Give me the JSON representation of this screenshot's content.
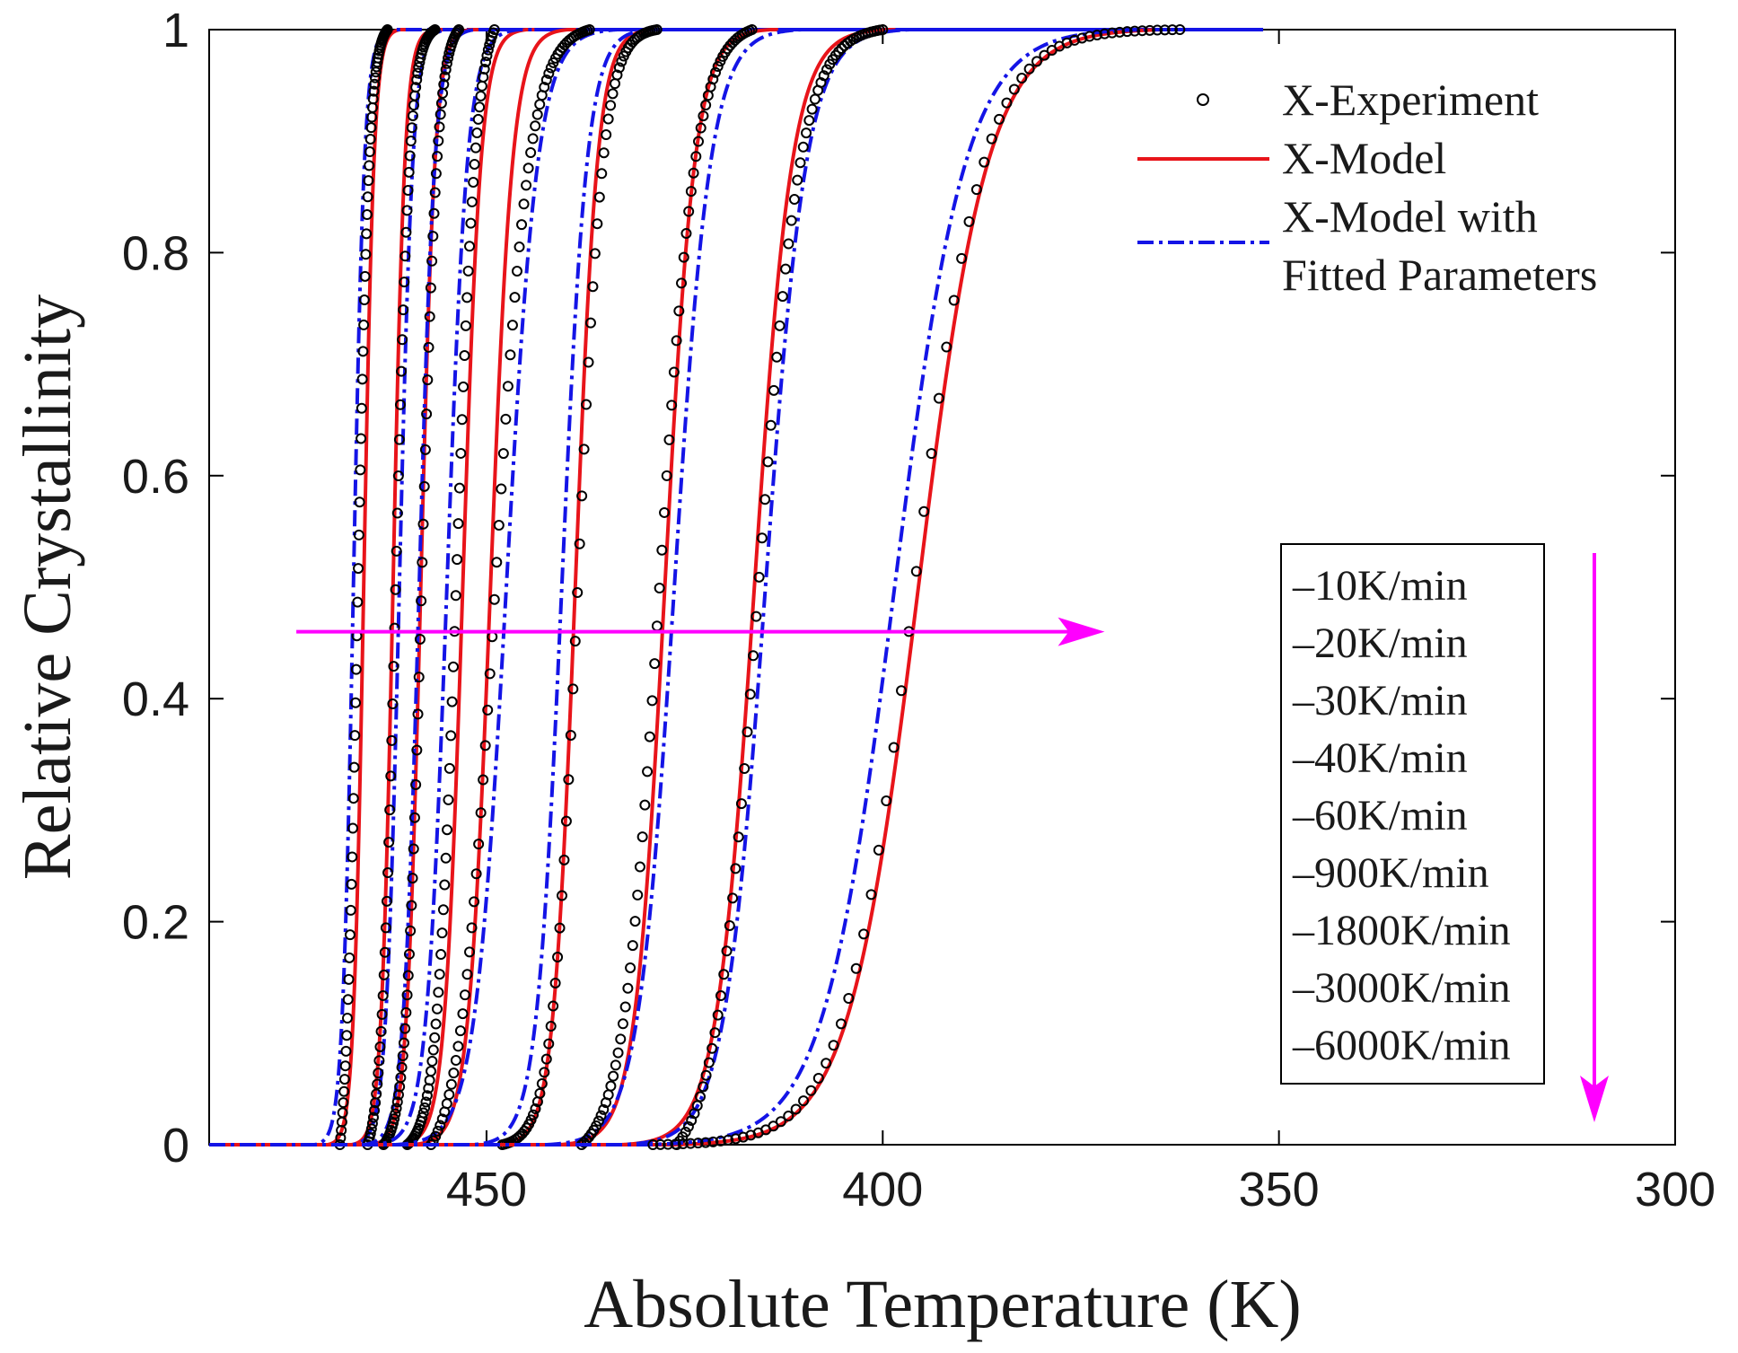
{
  "chart_data": {
    "type": "line",
    "xlabel": "Absolute Temperature (K)",
    "ylabel": "Relative Crystallinity",
    "xlim": [
      485,
      300
    ],
    "x_reversed": true,
    "ylim": [
      0,
      1
    ],
    "x_ticks": [
      450,
      400,
      350,
      300
    ],
    "x_tick_labels": [
      "450",
      "400",
      "350",
      "300"
    ],
    "y_ticks": [
      0,
      0.2,
      0.4,
      0.6,
      0.8,
      1
    ],
    "y_tick_labels": [
      "0",
      "0.2",
      "0.4",
      "0.6",
      "0.8",
      "1"
    ],
    "grid": false,
    "legend": {
      "position": "top-right",
      "entries": [
        {
          "label": "X-Experiment",
          "style": "circle-markers",
          "color": "#000000"
        },
        {
          "label": "X-Model",
          "style": "solid",
          "color": "#e8141a"
        },
        {
          "label": "X-Model with",
          "label2": "Fitted Parameters",
          "style": "dash-dot",
          "color": "#1414e6"
        }
      ]
    },
    "rate_legend": {
      "position": "right",
      "entries": [
        "–10K/min",
        "–20K/min",
        "–30K/min",
        "–40K/min",
        "–60K/min",
        "–900K/min",
        "–1800K/min",
        "–3000K/min",
        "–6000K/min"
      ]
    },
    "annotations": [
      {
        "type": "arrow",
        "direction": "toward lower temperature",
        "y": 0.46,
        "x_from": 474,
        "x_to": 372,
        "color": "#ff00ff"
      },
      {
        "type": "arrow",
        "direction": "down along rate list",
        "color": "#ff00ff"
      }
    ],
    "series_params": [
      {
        "rate": "–10K/min",
        "exp_mid": 466.3,
        "exp_width": 0.75,
        "exp_start": 468.5,
        "exp_end": 462.5,
        "model_mid": 465.5,
        "model_width": 0.65,
        "fit_mid": 466.8,
        "fit_width": 0.7
      },
      {
        "rate": "–20K/min",
        "exp_mid": 461.5,
        "exp_width": 0.9,
        "exp_start": 465.0,
        "exp_end": 456.5,
        "model_mid": 461.8,
        "model_width": 0.75,
        "fit_mid": 461.0,
        "fit_width": 0.85
      },
      {
        "rate": "–30K/min",
        "exp_mid": 458.2,
        "exp_width": 1.0,
        "exp_start": 463.0,
        "exp_end": 453.5,
        "model_mid": 458.3,
        "model_width": 0.9,
        "fit_mid": 458.5,
        "fit_width": 1.0
      },
      {
        "rate": "–40K/min",
        "exp_mid": 453.8,
        "exp_width": 1.25,
        "exp_start": 460.0,
        "exp_end": 449.0,
        "model_mid": 453.0,
        "model_width": 1.15,
        "fit_mid": 455.0,
        "fit_width": 1.3
      },
      {
        "rate": "–60K/min",
        "exp_mid": 449.0,
        "exp_width": 2.2,
        "exp_start": 457.0,
        "exp_end": 437.0,
        "model_mid": 449.5,
        "model_width": 1.4,
        "fit_mid": 447.5,
        "fit_width": 2.0
      },
      {
        "rate": "–900K/min",
        "exp_mid": 438.5,
        "exp_width": 1.6,
        "exp_start": 448.0,
        "exp_end": 428.5,
        "model_mid": 438.8,
        "model_width": 1.4,
        "fit_mid": 440.5,
        "fit_width": 1.6
      },
      {
        "rate": "–1800K/min",
        "exp_mid": 428.2,
        "exp_width": 2.3,
        "exp_start": 438.0,
        "exp_end": 416.5,
        "model_mid": 427.5,
        "model_width": 1.9,
        "fit_mid": 426.3,
        "fit_width": 2.3
      },
      {
        "rate": "–3000K/min",
        "exp_mid": 415.8,
        "exp_width": 2.7,
        "exp_start": 426.0,
        "exp_end": 400.0,
        "model_mid": 416.2,
        "model_width": 2.4,
        "fit_mid": 414.8,
        "fit_width": 2.6
      },
      {
        "rate": "–6000K/min",
        "exp_mid": 396.0,
        "exp_width": 4.4,
        "exp_start": 429.0,
        "exp_end": 362.5,
        "model_mid": 395.5,
        "model_width": 4.4,
        "fit_mid": 398.5,
        "fit_width": 4.5
      }
    ]
  }
}
